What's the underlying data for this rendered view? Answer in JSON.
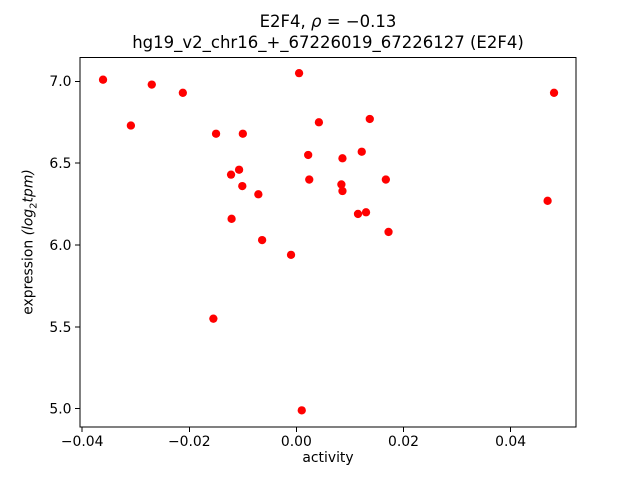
{
  "chart_data": {
    "type": "scatter",
    "title": "E2F4, ρ = −0.13",
    "title_parts": {
      "prefix": "E2F4, ",
      "rho": "ρ",
      "suffix": " = −0.13"
    },
    "subtitle": "hg19_v2_chr16_+_67226019_67226127 (E2F4)",
    "xlabel": "activity",
    "ylabel": "expression (log2tpm)",
    "ylabel_parts": {
      "prefix": "expression ",
      "paren_open": "(",
      "log": "log",
      "sub": "2",
      "tpm": "tpm",
      "paren_close": ")"
    },
    "marker_color": "#ff0000",
    "axis_color": "#000000",
    "background_color": "#ffffff",
    "grid": false,
    "xlim": [
      -0.0404,
      0.0522
    ],
    "ylim": [
      4.887,
      7.145
    ],
    "xticks": {
      "values": [
        -0.04,
        -0.02,
        0.0,
        0.02,
        0.04
      ],
      "labels": [
        "−0.04",
        "−0.02",
        "0.00",
        "0.02",
        "0.04"
      ]
    },
    "yticks": {
      "values": [
        7.0,
        6.5,
        6.0,
        5.5,
        5.0
      ],
      "labels": [
        "7.0",
        "6.5",
        "6.0",
        "5.5",
        "5.0"
      ]
    },
    "points": [
      [
        -0.0361,
        7.01
      ],
      [
        -0.027,
        6.98
      ],
      [
        -0.0212,
        6.93
      ],
      [
        -0.0309,
        6.73
      ],
      [
        0.0005,
        7.05
      ],
      [
        -0.015,
        6.68
      ],
      [
        -0.01,
        6.68
      ],
      [
        0.0042,
        6.75
      ],
      [
        0.0022,
        6.55
      ],
      [
        -0.0122,
        6.43
      ],
      [
        -0.0107,
        6.46
      ],
      [
        -0.0101,
        6.36
      ],
      [
        -0.0071,
        6.31
      ],
      [
        0.0024,
        6.4
      ],
      [
        -0.0121,
        6.16
      ],
      [
        -0.0064,
        6.03
      ],
      [
        0.0481,
        6.93
      ],
      [
        0.0137,
        6.77
      ],
      [
        0.0086,
        6.53
      ],
      [
        0.0122,
        6.57
      ],
      [
        0.0084,
        6.37
      ],
      [
        0.0086,
        6.33
      ],
      [
        0.0167,
        6.4
      ],
      [
        0.0115,
        6.19
      ],
      [
        0.013,
        6.2
      ],
      [
        0.0172,
        6.08
      ],
      [
        0.0469,
        6.27
      ],
      [
        -0.001,
        5.94
      ],
      [
        -0.0155,
        5.55
      ],
      [
        0.001,
        4.99
      ]
    ]
  }
}
